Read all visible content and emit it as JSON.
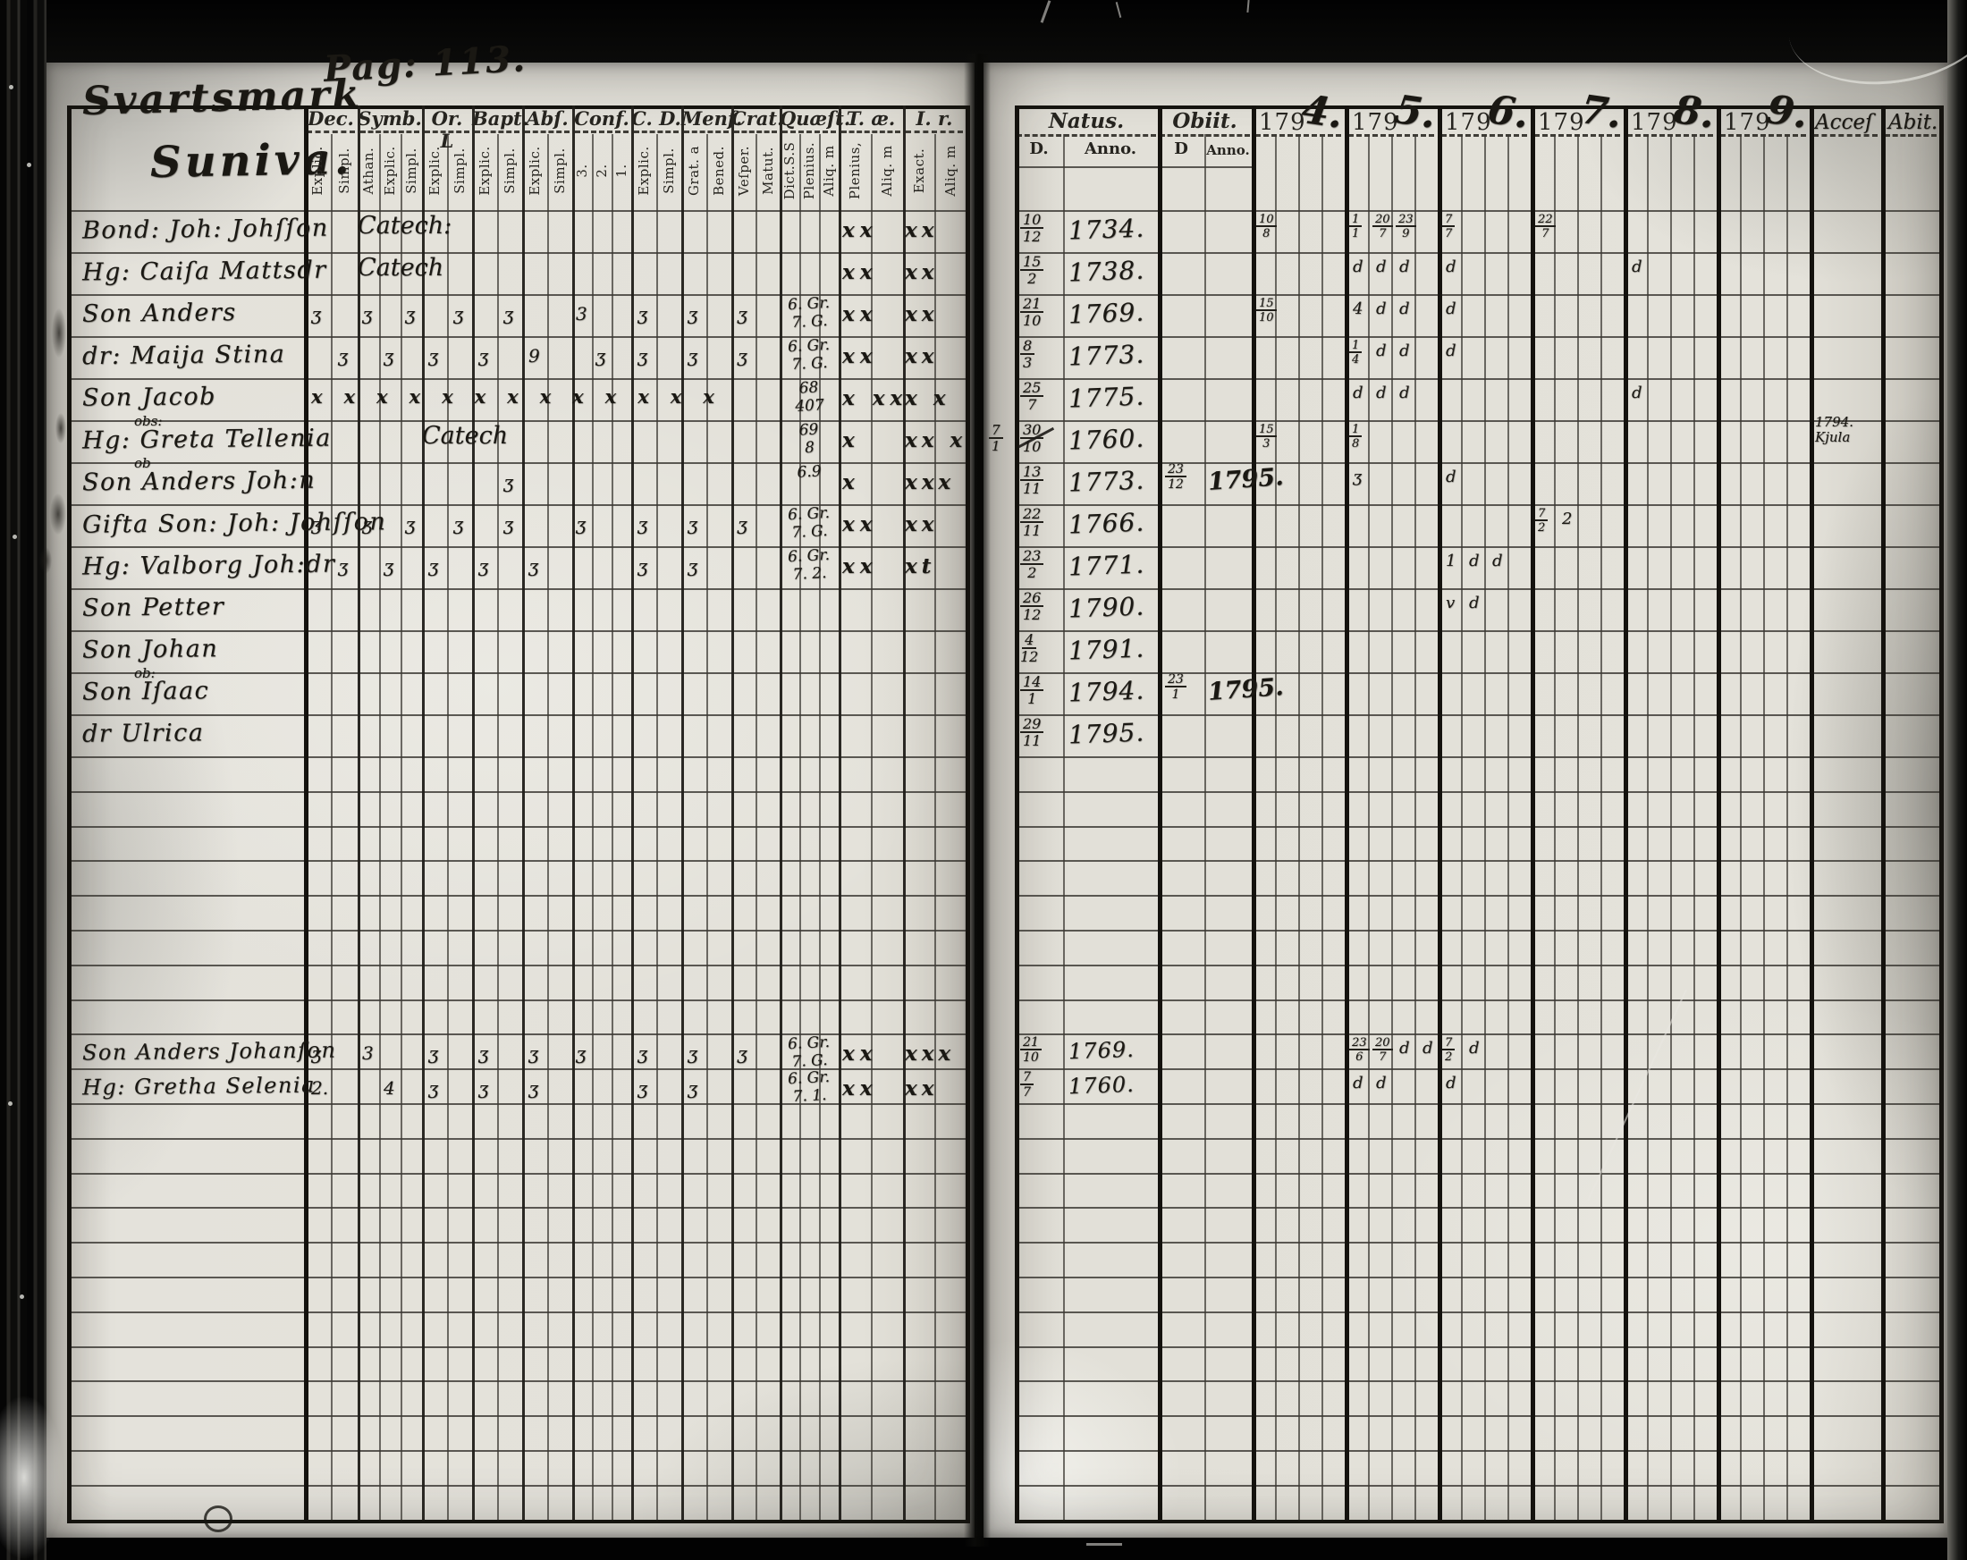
{
  "document": {
    "kind": "parish examination register, scanned book opening",
    "page_number": "Pag: 113.",
    "place_title_line1": "Svartsmark",
    "place_title_line2": "Suniva."
  },
  "left_table": {
    "groups": [
      {
        "label": "Dec.",
        "subs": [
          "Explic.",
          "Simpl."
        ]
      },
      {
        "label": "Symb.",
        "subs": [
          "Athan.",
          "Explic.",
          "Simpl."
        ]
      },
      {
        "label": "Or. L",
        "subs": [
          "Explic.",
          "Simpl."
        ]
      },
      {
        "label": "Bapt.",
        "subs": [
          "Explic.",
          "Simpl."
        ]
      },
      {
        "label": "Abſ.",
        "subs": [
          "Explic.",
          "Simpl."
        ]
      },
      {
        "label": "Conf.",
        "subs": [
          "3.",
          "2.",
          "1."
        ]
      },
      {
        "label": "C. D.",
        "subs": [
          "Explic.",
          "Simpl."
        ]
      },
      {
        "label": "Menſ.",
        "subs": [
          "Grat. a",
          "Bened."
        ]
      },
      {
        "label": "Crat.",
        "subs": [
          "Veſper.",
          "Matut."
        ]
      },
      {
        "label": "Quæſt.",
        "subs": [
          "Dict.S.S",
          "Plenius.",
          "Aliq. m"
        ]
      },
      {
        "label": "T. æ.",
        "subs": [
          "Plenius,",
          "Aliq. m"
        ]
      },
      {
        "label": "I. r.",
        "subs": [
          "Exact.",
          "Aliq. m"
        ]
      }
    ],
    "rows": [
      {
        "name": "Bond: Joh: Johſſon",
        "catech": "Catech:",
        "catech_col": 1,
        "tae": "xx",
        "ir": "xx"
      },
      {
        "name": "Hg: Caiſa Mattsdr",
        "catech": "Catech",
        "catech_col": 1,
        "tae": "xx",
        "ir": "xx"
      },
      {
        "name": "Son Anders",
        "marks": [
          {
            "c": 0,
            "g": "ʒ"
          },
          {
            "c": 2,
            "g": "ʒ"
          },
          {
            "c": 4,
            "g": "ʒ"
          },
          {
            "c": 6,
            "g": "ʒ"
          },
          {
            "c": 8,
            "g": "ʒ"
          },
          {
            "c": 11,
            "g": "3"
          },
          {
            "c": 14,
            "g": "ʒ"
          },
          {
            "c": 16,
            "g": "ʒ"
          },
          {
            "c": 18,
            "g": "ʒ"
          }
        ],
        "quaest": [
          "6. Gr.",
          "7. G."
        ],
        "tae": "xx",
        "ir": "xx"
      },
      {
        "name": "dr: Maija Stina",
        "marks": [
          {
            "c": 1,
            "g": "ʒ"
          },
          {
            "c": 3,
            "g": "ʒ"
          },
          {
            "c": 5,
            "g": "ʒ"
          },
          {
            "c": 7,
            "g": "ʒ"
          },
          {
            "c": 9,
            "g": "9"
          },
          {
            "c": 12,
            "g": "ʒ"
          },
          {
            "c": 14,
            "g": "ʒ"
          },
          {
            "c": 16,
            "g": "ʒ"
          },
          {
            "c": 18,
            "g": "ʒ"
          }
        ],
        "quaest": [
          "6. Gr.",
          "7. G."
        ],
        "tae": "xx",
        "ir": "xx"
      },
      {
        "name": "Son Jacob",
        "xrun": "xxxxxxxxxxxxx",
        "quaest": [
          "68",
          "407"
        ],
        "tae": "x xx",
        "ir": "x x"
      },
      {
        "name": "Hg: Greta Tellenia",
        "note": "obs:",
        "catech": "Catech",
        "catech_col": 2,
        "quaest": [
          "69",
          "8"
        ],
        "tae": "x",
        "ir": "xx x"
      },
      {
        "name": "Son Anders Joh:n",
        "note": "ob",
        "marks": [
          {
            "c": 8,
            "g": "ʒ"
          }
        ],
        "quaest": [
          "6.9",
          ""
        ],
        "tae": "x",
        "ir": "xxx"
      },
      {
        "name": "Gifta Son: Joh: Johſſon",
        "marks": [
          {
            "c": 0,
            "g": "ʒ"
          },
          {
            "c": 2,
            "g": "ʒ"
          },
          {
            "c": 4,
            "g": "ʒ"
          },
          {
            "c": 6,
            "g": "ʒ"
          },
          {
            "c": 8,
            "g": "ʒ"
          },
          {
            "c": 11,
            "g": "ʒ"
          },
          {
            "c": 14,
            "g": "ʒ"
          },
          {
            "c": 16,
            "g": "ʒ"
          },
          {
            "c": 18,
            "g": "ʒ"
          }
        ],
        "quaest": [
          "6. Gr.",
          "7. G."
        ],
        "tae": "xx",
        "ir": "xx"
      },
      {
        "name": "Hg: Valborg Joh:dr",
        "marks": [
          {
            "c": 1,
            "g": "ʒ"
          },
          {
            "c": 3,
            "g": "ʒ"
          },
          {
            "c": 5,
            "g": "ʒ"
          },
          {
            "c": 7,
            "g": "ʒ"
          },
          {
            "c": 9,
            "g": "ʒ"
          },
          {
            "c": 14,
            "g": "ʒ"
          },
          {
            "c": 16,
            "g": "ʒ"
          }
        ],
        "quaest": [
          "6. Gr.",
          "7. 2."
        ],
        "tae": "xx",
        "ir": "xt"
      },
      {
        "name": "Son Petter"
      },
      {
        "name": "Son Johan"
      },
      {
        "name": "Son Iſaac",
        "note": "ob:"
      },
      {
        "name": "dr Ulrica"
      }
    ],
    "lower_rows": [
      {
        "name": "Son Anders Johanſon",
        "marks": [
          {
            "c": 0,
            "g": "ʒ"
          },
          {
            "c": 2,
            "g": "3"
          },
          {
            "c": 5,
            "g": "ʒ"
          },
          {
            "c": 7,
            "g": "ʒ"
          },
          {
            "c": 9,
            "g": "ʒ"
          },
          {
            "c": 11,
            "g": "ʒ"
          },
          {
            "c": 14,
            "g": "ʒ"
          },
          {
            "c": 16,
            "g": "ʒ"
          },
          {
            "c": 18,
            "g": "ʒ"
          }
        ],
        "quaest": [
          "6. Gr.",
          "7. G."
        ],
        "tae": "xx",
        "ir": "xxx"
      },
      {
        "name": "Hg: Gretha Selenia",
        "marks": [
          {
            "c": 0,
            "g": "2."
          },
          {
            "c": 3,
            "g": "4"
          },
          {
            "c": 5,
            "g": "ʒ"
          },
          {
            "c": 7,
            "g": "ʒ"
          },
          {
            "c": 9,
            "g": "ʒ"
          },
          {
            "c": 14,
            "g": "ʒ"
          },
          {
            "c": 16,
            "g": "ʒ"
          }
        ],
        "quaest": [
          "6. Gr.",
          "7. 1."
        ],
        "tae": "xx",
        "ir": "xx"
      }
    ]
  },
  "right_table": {
    "natus_label": "Natus.",
    "obiit_label": "Obiit.",
    "sub_d": "D.",
    "sub_anno": "Anno.",
    "sub_d2": "D",
    "sub_anno2": "Anno.",
    "years": [
      {
        "printed": "179",
        "script": "4."
      },
      {
        "printed": "179",
        "script": "5."
      },
      {
        "printed": "179",
        "script": "6."
      },
      {
        "printed": "179",
        "script": "7."
      },
      {
        "printed": "179",
        "script": "8."
      },
      {
        "printed": "179",
        "script": "9."
      }
    ],
    "acces_label": "Acceſ",
    "abit_label": "Abit.",
    "rows": [
      {
        "natus_d": "10|12",
        "natus_anno": "1734.",
        "years": {
          "1794": [
            "10|8"
          ],
          "1795": [
            "1|1",
            "20|7",
            "23|9"
          ],
          "1796": [
            "7|7"
          ],
          "1797": [
            "22|7"
          ]
        }
      },
      {
        "natus_d": "15|2",
        "natus_anno": "1738.",
        "years": {
          "1795": [
            "d",
            "d",
            "d"
          ],
          "1796": [
            "d"
          ],
          "1798": [
            "d"
          ]
        }
      },
      {
        "natus_d": "21|10",
        "natus_anno": "1769.",
        "years": {
          "1794": [
            "15|10"
          ],
          "1795": [
            "4",
            "d",
            "d"
          ],
          "1796": [
            "d"
          ]
        }
      },
      {
        "natus_d": "8|3",
        "natus_anno": "1773.",
        "years": {
          "1795": [
            "1|4",
            "d",
            "d"
          ],
          "1796": [
            "d"
          ]
        }
      },
      {
        "natus_d": "25|7",
        "natus_anno": "1775.",
        "years": {
          "1795": [
            "d",
            "d",
            "d"
          ],
          "1798": [
            "d"
          ]
        }
      },
      {
        "natus_d": "30|10",
        "natus_struck": true,
        "margin_d": "7|1",
        "natus_anno": "1760.",
        "years": {
          "1794": [
            "15|3"
          ],
          "1795": [
            "1|8"
          ]
        },
        "acces": [
          "1794.",
          "Kjula"
        ]
      },
      {
        "natus_d": "13|11",
        "natus_anno": "1773.",
        "obiit_d": "23|12",
        "obiit_anno": "1795.",
        "years": {
          "1795": [
            "ʒ"
          ],
          "1796": [
            "d"
          ]
        }
      },
      {
        "natus_d": "22|11",
        "natus_anno": "1766.",
        "years": {
          "1797": [
            "7|2",
            "2"
          ]
        }
      },
      {
        "natus_d": "23|2",
        "natus_anno": "1771.",
        "years": {
          "1796": [
            "1",
            "d",
            "d"
          ]
        }
      },
      {
        "natus_d": "26|12",
        "natus_anno": "1790.",
        "years": {
          "1796": [
            "v",
            "d"
          ]
        }
      },
      {
        "natus_d": "4|12",
        "natus_anno": "1791."
      },
      {
        "natus_d": "14|1",
        "natus_anno": "1794.",
        "obiit_d": "23|1",
        "obiit_anno": "1795."
      },
      {
        "natus_d": "29|11",
        "natus_anno": "1795."
      }
    ],
    "lower_rows": [
      {
        "natus_d": "21|10",
        "natus_anno": "1769.",
        "years": {
          "1795": [
            "23|6",
            "20|7",
            "d",
            "d"
          ],
          "1796": [
            "7|2",
            "d"
          ]
        }
      },
      {
        "natus_d": "7|7",
        "natus_anno": "1760.",
        "years": {
          "1795": [
            "d",
            "d"
          ],
          "1796": [
            "d"
          ]
        }
      }
    ]
  }
}
